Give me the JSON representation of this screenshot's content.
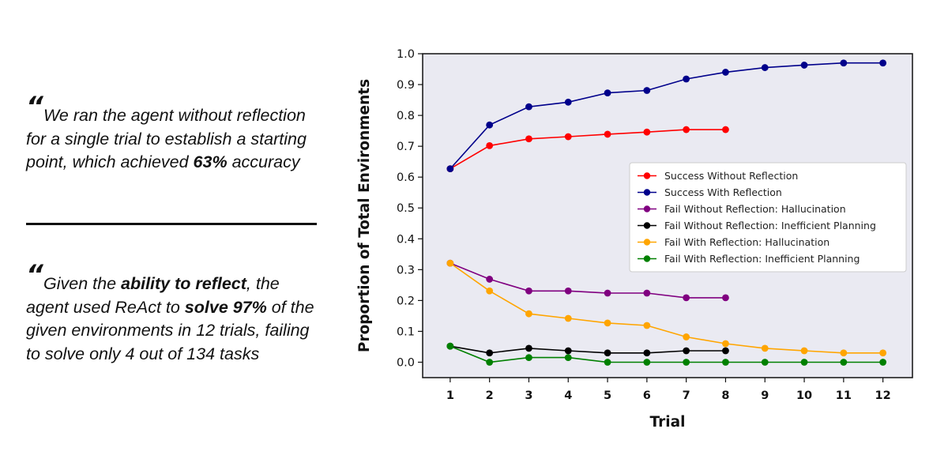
{
  "quotes": [
    {
      "mark": "“",
      "parts": [
        {
          "text": "We ran the agent without reflection for a single trial to establish a starting point, which achieved ",
          "bold": false
        },
        {
          "text": "63%",
          "bold": true
        },
        {
          "text": " accuracy",
          "bold": false
        }
      ]
    },
    {
      "mark": "“",
      "parts": [
        {
          "text": "Given the ",
          "bold": false
        },
        {
          "text": "ability to reflect",
          "bold": true
        },
        {
          "text": ", the agent used ReAct to ",
          "bold": false
        },
        {
          "text": "solve 97%",
          "bold": true
        },
        {
          "text": " of the given environments in 12 trials, failing to solve only 4 out of 134 tasks",
          "bold": false
        }
      ]
    }
  ],
  "chart_data": {
    "type": "line",
    "title": "",
    "xlabel": "Trial",
    "ylabel": "Proportion of Total Environments",
    "x_ticks": [
      1,
      2,
      3,
      4,
      5,
      6,
      7,
      8,
      9,
      10,
      11,
      12
    ],
    "y_ticks": [
      "0.0",
      "0.1",
      "0.2",
      "0.3",
      "0.4",
      "0.5",
      "0.6",
      "0.7",
      "0.8",
      "0.9",
      "1.0"
    ],
    "xlim": [
      0.3,
      12.75
    ],
    "ylim": [
      -0.05,
      1.0
    ],
    "grid": false,
    "background": "#eaeaf2",
    "legend_position": "center-right",
    "series": [
      {
        "name": "Success Without Reflection",
        "color": "#ff0000",
        "x": [
          1,
          2,
          3,
          4,
          5,
          6,
          7,
          8
        ],
        "y": [
          0.627,
          0.702,
          0.724,
          0.731,
          0.739,
          0.746,
          0.754,
          0.754
        ]
      },
      {
        "name": "Success With Reflection",
        "color": "#00008b",
        "x": [
          1,
          2,
          3,
          4,
          5,
          6,
          7,
          8,
          9,
          10,
          11,
          12
        ],
        "y": [
          0.627,
          0.769,
          0.828,
          0.843,
          0.873,
          0.881,
          0.918,
          0.94,
          0.955,
          0.963,
          0.97,
          0.97
        ]
      },
      {
        "name": "Fail Without Reflection: Hallucination",
        "color": "#800080",
        "x": [
          1,
          2,
          3,
          4,
          5,
          6,
          7,
          8
        ],
        "y": [
          0.321,
          0.269,
          0.231,
          0.231,
          0.224,
          0.224,
          0.209,
          0.209
        ]
      },
      {
        "name": "Fail Without Reflection: Inefficient Planning",
        "color": "#000000",
        "x": [
          1,
          2,
          3,
          4,
          5,
          6,
          7,
          8
        ],
        "y": [
          0.052,
          0.03,
          0.045,
          0.037,
          0.03,
          0.03,
          0.037,
          0.037
        ]
      },
      {
        "name": "Fail With Reflection: Hallucination",
        "color": "#ffa500",
        "x": [
          1,
          2,
          3,
          4,
          5,
          6,
          7,
          8,
          9,
          10,
          11,
          12
        ],
        "y": [
          0.321,
          0.231,
          0.157,
          0.142,
          0.127,
          0.119,
          0.082,
          0.06,
          0.045,
          0.037,
          0.03,
          0.03
        ]
      },
      {
        "name": "Fail With Reflection: Inefficient Planning",
        "color": "#008000",
        "x": [
          1,
          2,
          3,
          4,
          5,
          6,
          7,
          8,
          9,
          10,
          11,
          12
        ],
        "y": [
          0.052,
          0.0,
          0.015,
          0.015,
          0.0,
          0.0,
          0.0,
          0.0,
          0.0,
          0.0,
          0.0,
          0.0
        ]
      }
    ]
  }
}
